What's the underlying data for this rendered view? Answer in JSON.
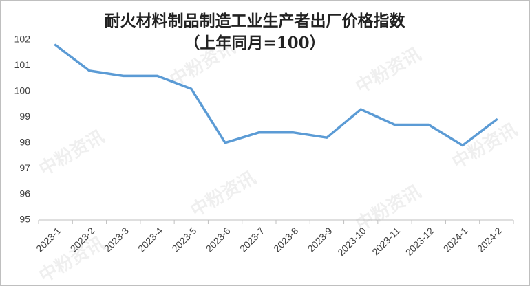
{
  "chart_data": {
    "type": "line",
    "title": "耐火材料制品制造工业生产者出厂价格指数",
    "subtitle": "（上年同月=100）",
    "watermark": "中粉资讯",
    "categories": [
      "2023-1",
      "2023-2",
      "2023-3",
      "2023-4",
      "2023-5",
      "2023-6",
      "2023-7",
      "2023-8",
      "2023-9",
      "2023-10",
      "2023-11",
      "2023-12",
      "2024-1",
      "2024-2"
    ],
    "series": [
      {
        "name": "耐火材料制品制造工业生产者出厂价格指数",
        "color": "#5b9bd5",
        "values": [
          101.8,
          100.8,
          100.6,
          100.6,
          100.1,
          98.0,
          98.4,
          98.4,
          98.2,
          99.3,
          98.7,
          98.7,
          97.9,
          98.9
        ]
      }
    ],
    "ylim": [
      95,
      102
    ],
    "yticks": [
      95,
      96,
      97,
      98,
      99,
      100,
      101,
      102
    ],
    "grid": false
  }
}
